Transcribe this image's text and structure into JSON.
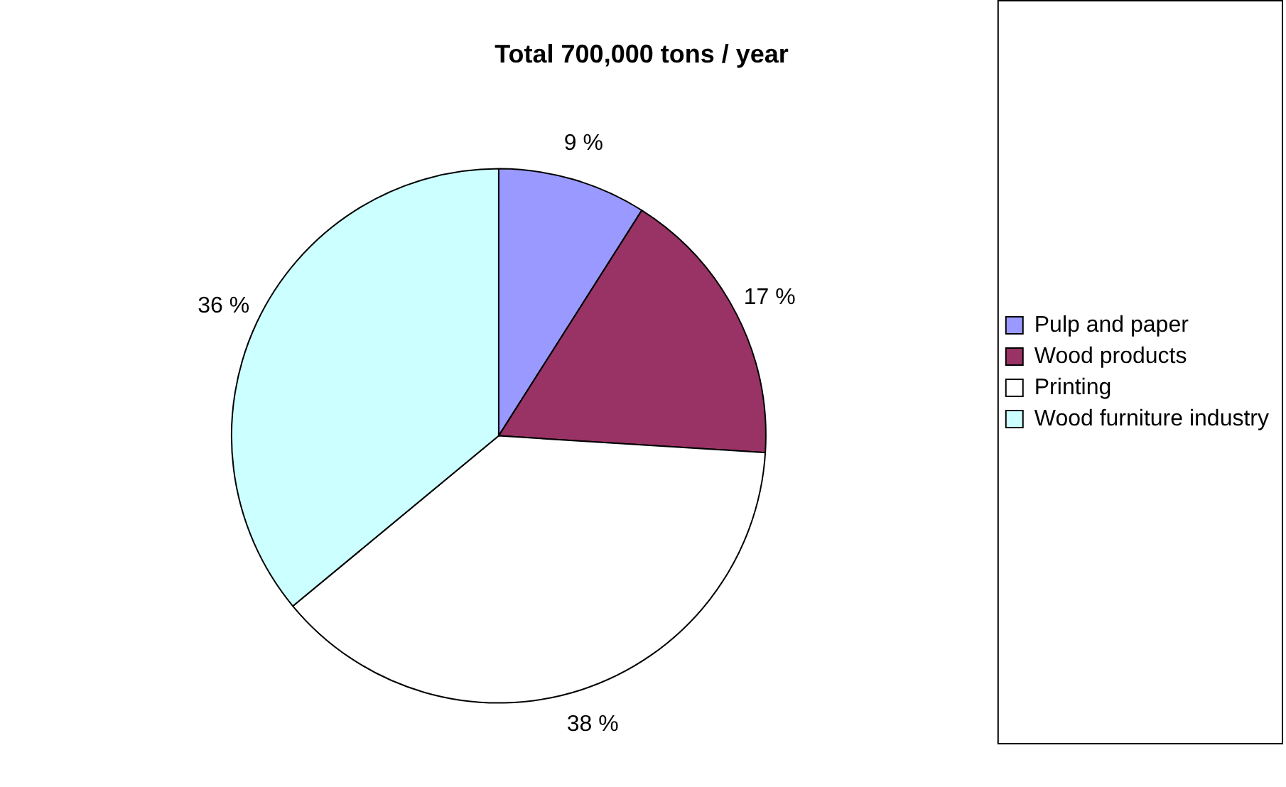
{
  "chart_data": {
    "type": "pie",
    "title": "Total 700,000 tons / year",
    "categories": [
      "Pulp and paper",
      "Wood products",
      "Printing",
      "Wood furniture industry"
    ],
    "values": [
      9,
      17,
      38,
      36
    ],
    "colors": [
      "#9999ff",
      "#993366",
      "#ffffff",
      "#ccffff"
    ],
    "value_labels": [
      "9 %",
      "17 %",
      "38 %",
      "36 %"
    ],
    "legend": "right"
  }
}
